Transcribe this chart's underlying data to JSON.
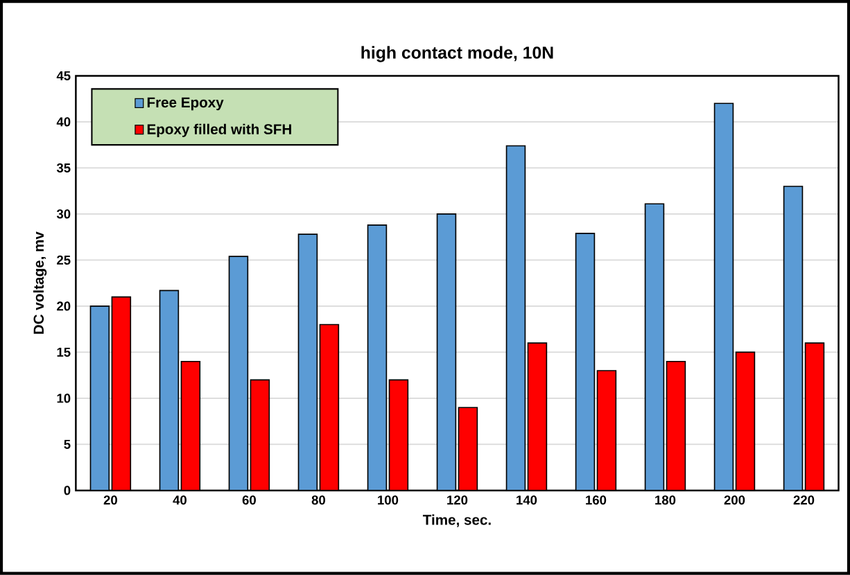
{
  "chart_data": {
    "type": "bar",
    "title": "high contact mode, 10N",
    "xlabel": "Time, sec.",
    "ylabel": "DC voltage, mv",
    "categories": [
      "20",
      "40",
      "60",
      "80",
      "100",
      "120",
      "140",
      "160",
      "180",
      "200",
      "220"
    ],
    "series": [
      {
        "name": "Free Epoxy",
        "color": "#5b9bd5",
        "values": [
          20,
          21.7,
          25.4,
          27.8,
          28.8,
          30,
          37.4,
          27.9,
          31.1,
          42,
          33
        ]
      },
      {
        "name": "Epoxy filled with SFH",
        "color": "#ff0000",
        "values": [
          21,
          14,
          12,
          18,
          12,
          9,
          16,
          13,
          14,
          15,
          16
        ]
      }
    ],
    "ylim": [
      0,
      45
    ],
    "yticks": [
      0,
      5,
      10,
      15,
      20,
      25,
      30,
      35,
      40,
      45
    ],
    "grid": "y",
    "legend": "top left"
  }
}
